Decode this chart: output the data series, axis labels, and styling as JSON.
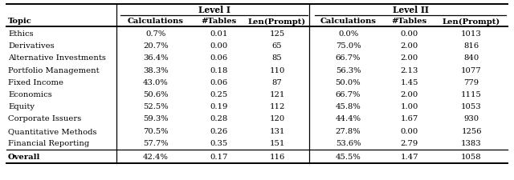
{
  "headers_row2": [
    "Topic",
    "Calculations",
    "#Tables",
    "Len(Prompt)",
    "Calculations",
    "#Tables",
    "Len(Prompt)"
  ],
  "rows": [
    [
      "Ethics",
      "0.7%",
      "0.01",
      "125",
      "0.0%",
      "0.00",
      "1013"
    ],
    [
      "Derivatives",
      "20.7%",
      "0.00",
      "65",
      "75.0%",
      "2.00",
      "816"
    ],
    [
      "Alternative Investments",
      "36.4%",
      "0.06",
      "85",
      "66.7%",
      "2.00",
      "840"
    ],
    [
      "Portfolio Management",
      "38.3%",
      "0.18",
      "110",
      "56.3%",
      "2.13",
      "1077"
    ],
    [
      "Fixed Income",
      "43.0%",
      "0.06",
      "87",
      "50.0%",
      "1.45",
      "779"
    ],
    [
      "Economics",
      "50.6%",
      "0.25",
      "121",
      "66.7%",
      "2.00",
      "1115"
    ],
    [
      "Equity",
      "52.5%",
      "0.19",
      "112",
      "45.8%",
      "1.00",
      "1053"
    ],
    [
      "Corporate Issuers",
      "59.3%",
      "0.28",
      "120",
      "44.4%",
      "1.67",
      "930"
    ],
    [
      "Quantitative Methods",
      "70.5%",
      "0.26",
      "131",
      "27.8%",
      "0.00",
      "1256"
    ],
    [
      "Financial Reporting",
      "57.7%",
      "0.35",
      "151",
      "53.6%",
      "2.79",
      "1383"
    ]
  ],
  "overall": [
    "Overall",
    "42.4%",
    "0.17",
    "116",
    "45.5%",
    "1.47",
    "1058"
  ],
  "figsize": [
    6.4,
    2.26
  ],
  "dpi": 100,
  "font_size": 7.2,
  "bg_color": "#ffffff"
}
